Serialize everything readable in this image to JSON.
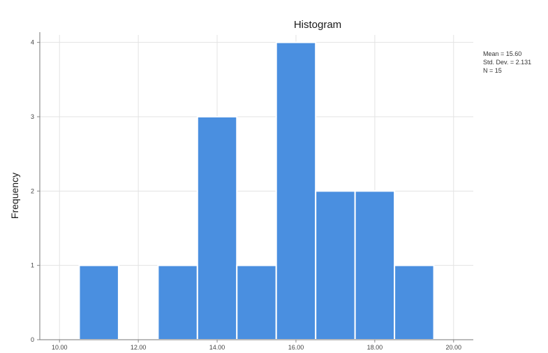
{
  "chart_data": {
    "type": "bar",
    "title": "Histogram",
    "xlabel": "",
    "ylabel": "Frequency",
    "x_ticks": [
      "10.00",
      "12.00",
      "14.00",
      "16.00",
      "18.00",
      "20.00"
    ],
    "y_ticks": [
      "0",
      "1",
      "2",
      "3",
      "4"
    ],
    "xlim": [
      9.5,
      20.5
    ],
    "ylim": [
      0,
      4.1
    ],
    "bins": [
      {
        "start": 10.5,
        "end": 11.5,
        "count": 1
      },
      {
        "start": 12.5,
        "end": 13.5,
        "count": 1
      },
      {
        "start": 13.5,
        "end": 14.5,
        "count": 3
      },
      {
        "start": 14.5,
        "end": 15.5,
        "count": 1
      },
      {
        "start": 15.5,
        "end": 16.5,
        "count": 4
      },
      {
        "start": 16.5,
        "end": 17.5,
        "count": 2
      },
      {
        "start": 17.5,
        "end": 18.5,
        "count": 2
      },
      {
        "start": 18.5,
        "end": 19.5,
        "count": 1
      }
    ],
    "bar_color": "#4a8fe0",
    "grid": true,
    "stats": {
      "mean": "Mean = 15.60",
      "std": "Std. Dev. = 2.131",
      "n": "N = 15"
    }
  }
}
